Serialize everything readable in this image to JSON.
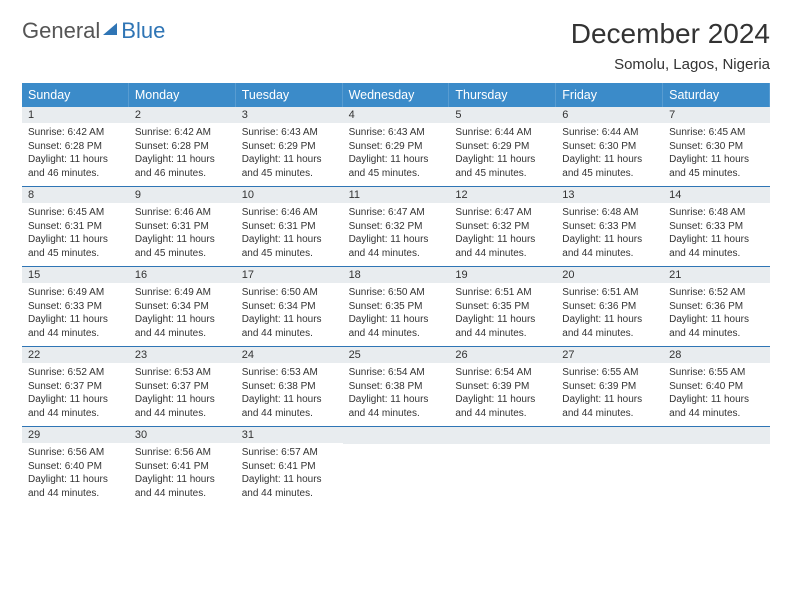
{
  "brand": {
    "part1": "General",
    "part2": "Blue"
  },
  "title": "December 2024",
  "location": "Somolu, Lagos, Nigeria",
  "colors": {
    "header_bg": "#3b8bc9",
    "header_text": "#ffffff",
    "daynum_bg": "#e8ecef",
    "week_divider": "#2f75b5",
    "brand_blue": "#2f75b5",
    "brand_gray": "#555555",
    "text": "#333333",
    "page_bg": "#ffffff"
  },
  "day_names": [
    "Sunday",
    "Monday",
    "Tuesday",
    "Wednesday",
    "Thursday",
    "Friday",
    "Saturday"
  ],
  "labels": {
    "sunrise": "Sunrise:",
    "sunset": "Sunset:",
    "daylight": "Daylight:"
  },
  "weeks": [
    [
      {
        "d": "1",
        "sr": "6:42 AM",
        "ss": "6:28 PM",
        "dl": "11 hours and 46 minutes."
      },
      {
        "d": "2",
        "sr": "6:42 AM",
        "ss": "6:28 PM",
        "dl": "11 hours and 46 minutes."
      },
      {
        "d": "3",
        "sr": "6:43 AM",
        "ss": "6:29 PM",
        "dl": "11 hours and 45 minutes."
      },
      {
        "d": "4",
        "sr": "6:43 AM",
        "ss": "6:29 PM",
        "dl": "11 hours and 45 minutes."
      },
      {
        "d": "5",
        "sr": "6:44 AM",
        "ss": "6:29 PM",
        "dl": "11 hours and 45 minutes."
      },
      {
        "d": "6",
        "sr": "6:44 AM",
        "ss": "6:30 PM",
        "dl": "11 hours and 45 minutes."
      },
      {
        "d": "7",
        "sr": "6:45 AM",
        "ss": "6:30 PM",
        "dl": "11 hours and 45 minutes."
      }
    ],
    [
      {
        "d": "8",
        "sr": "6:45 AM",
        "ss": "6:31 PM",
        "dl": "11 hours and 45 minutes."
      },
      {
        "d": "9",
        "sr": "6:46 AM",
        "ss": "6:31 PM",
        "dl": "11 hours and 45 minutes."
      },
      {
        "d": "10",
        "sr": "6:46 AM",
        "ss": "6:31 PM",
        "dl": "11 hours and 45 minutes."
      },
      {
        "d": "11",
        "sr": "6:47 AM",
        "ss": "6:32 PM",
        "dl": "11 hours and 44 minutes."
      },
      {
        "d": "12",
        "sr": "6:47 AM",
        "ss": "6:32 PM",
        "dl": "11 hours and 44 minutes."
      },
      {
        "d": "13",
        "sr": "6:48 AM",
        "ss": "6:33 PM",
        "dl": "11 hours and 44 minutes."
      },
      {
        "d": "14",
        "sr": "6:48 AM",
        "ss": "6:33 PM",
        "dl": "11 hours and 44 minutes."
      }
    ],
    [
      {
        "d": "15",
        "sr": "6:49 AM",
        "ss": "6:33 PM",
        "dl": "11 hours and 44 minutes."
      },
      {
        "d": "16",
        "sr": "6:49 AM",
        "ss": "6:34 PM",
        "dl": "11 hours and 44 minutes."
      },
      {
        "d": "17",
        "sr": "6:50 AM",
        "ss": "6:34 PM",
        "dl": "11 hours and 44 minutes."
      },
      {
        "d": "18",
        "sr": "6:50 AM",
        "ss": "6:35 PM",
        "dl": "11 hours and 44 minutes."
      },
      {
        "d": "19",
        "sr": "6:51 AM",
        "ss": "6:35 PM",
        "dl": "11 hours and 44 minutes."
      },
      {
        "d": "20",
        "sr": "6:51 AM",
        "ss": "6:36 PM",
        "dl": "11 hours and 44 minutes."
      },
      {
        "d": "21",
        "sr": "6:52 AM",
        "ss": "6:36 PM",
        "dl": "11 hours and 44 minutes."
      }
    ],
    [
      {
        "d": "22",
        "sr": "6:52 AM",
        "ss": "6:37 PM",
        "dl": "11 hours and 44 minutes."
      },
      {
        "d": "23",
        "sr": "6:53 AM",
        "ss": "6:37 PM",
        "dl": "11 hours and 44 minutes."
      },
      {
        "d": "24",
        "sr": "6:53 AM",
        "ss": "6:38 PM",
        "dl": "11 hours and 44 minutes."
      },
      {
        "d": "25",
        "sr": "6:54 AM",
        "ss": "6:38 PM",
        "dl": "11 hours and 44 minutes."
      },
      {
        "d": "26",
        "sr": "6:54 AM",
        "ss": "6:39 PM",
        "dl": "11 hours and 44 minutes."
      },
      {
        "d": "27",
        "sr": "6:55 AM",
        "ss": "6:39 PM",
        "dl": "11 hours and 44 minutes."
      },
      {
        "d": "28",
        "sr": "6:55 AM",
        "ss": "6:40 PM",
        "dl": "11 hours and 44 minutes."
      }
    ],
    [
      {
        "d": "29",
        "sr": "6:56 AM",
        "ss": "6:40 PM",
        "dl": "11 hours and 44 minutes."
      },
      {
        "d": "30",
        "sr": "6:56 AM",
        "ss": "6:41 PM",
        "dl": "11 hours and 44 minutes."
      },
      {
        "d": "31",
        "sr": "6:57 AM",
        "ss": "6:41 PM",
        "dl": "11 hours and 44 minutes."
      },
      null,
      null,
      null,
      null
    ]
  ]
}
